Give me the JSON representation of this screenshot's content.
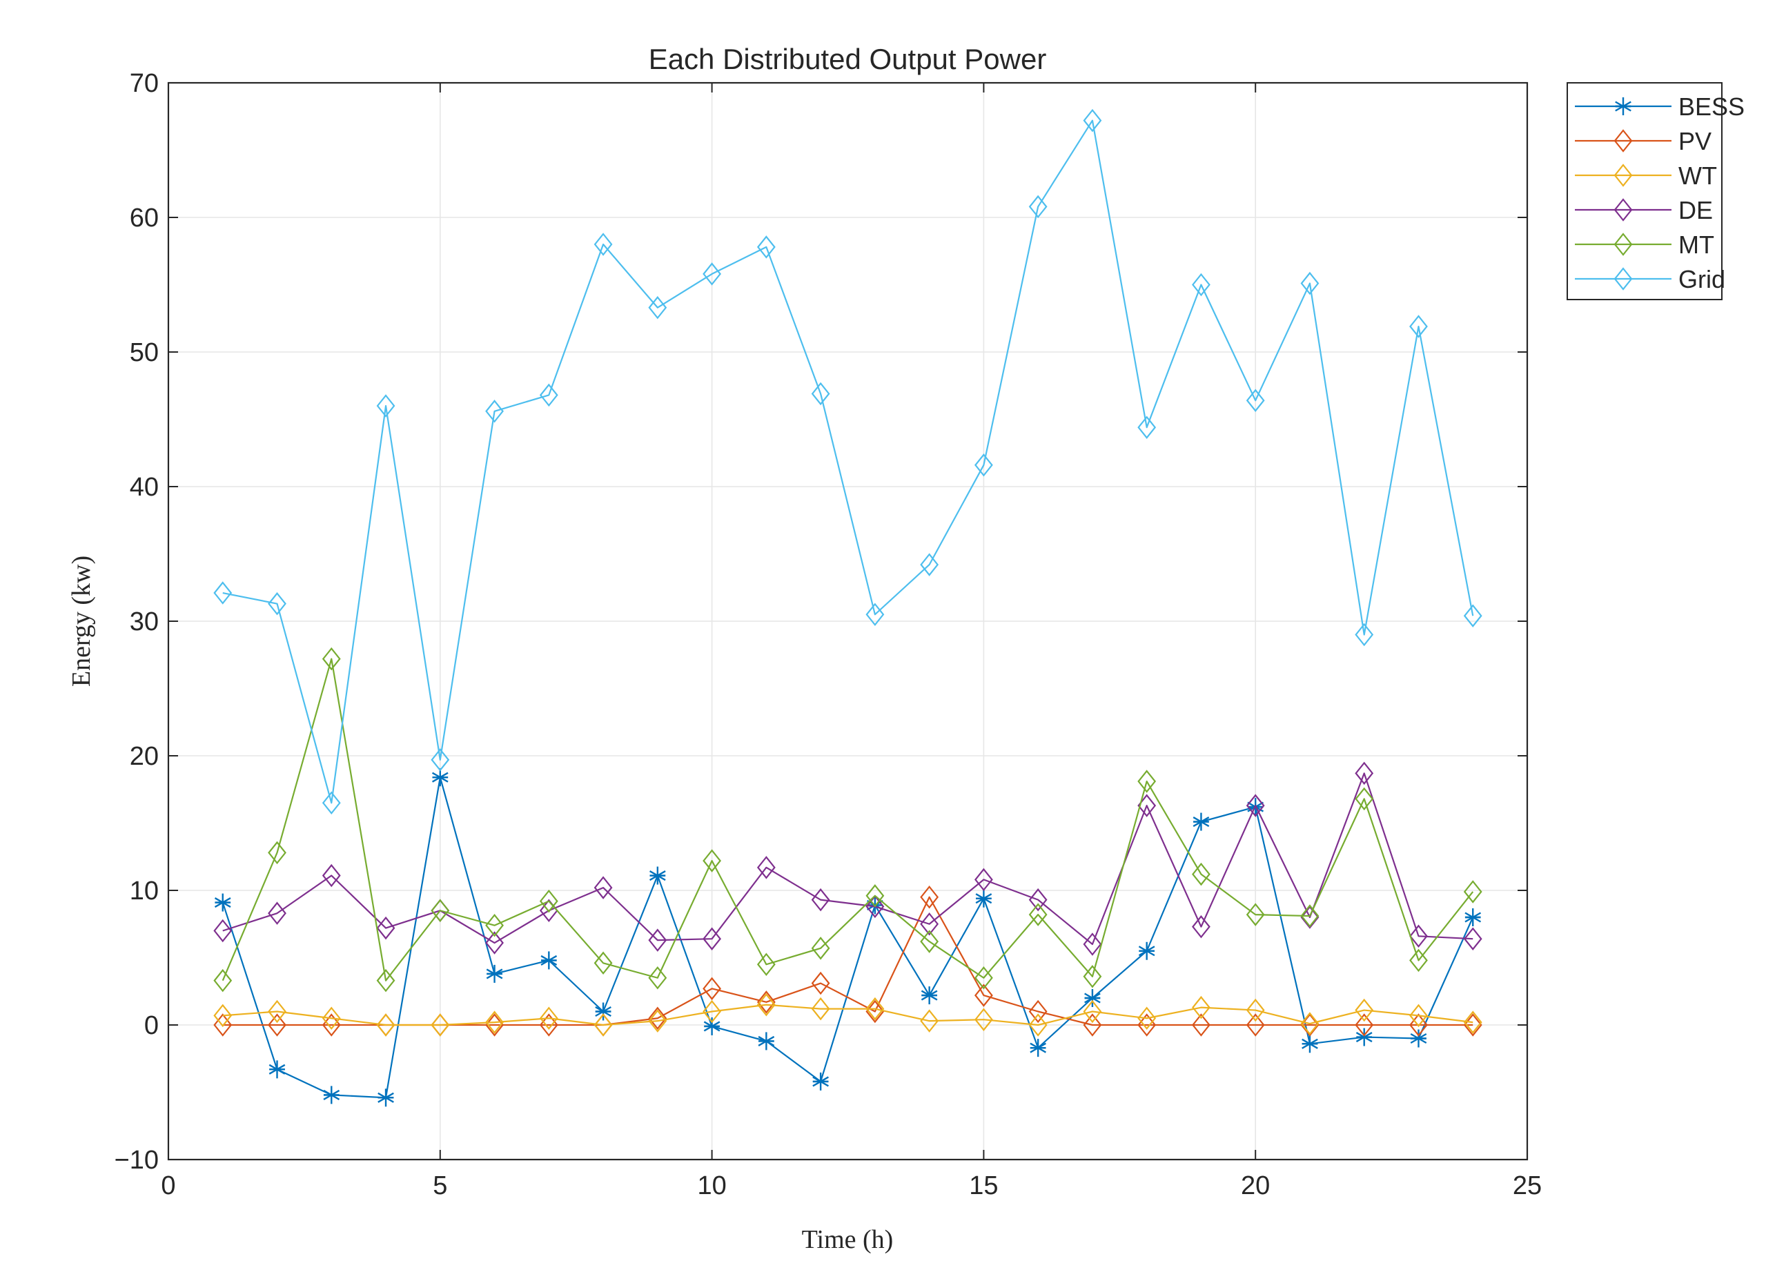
{
  "chart_data": {
    "type": "line",
    "title": "Each Distributed Output Power",
    "xlabel": "Time (h)",
    "ylabel": "Energy (kw)",
    "xlim": [
      0,
      25
    ],
    "ylim": [
      -10,
      70
    ],
    "xticks": [
      0,
      5,
      10,
      15,
      20,
      25
    ],
    "yticks": [
      -10,
      0,
      10,
      20,
      30,
      40,
      50,
      60,
      70
    ],
    "xtick_labels": [
      "0",
      "5",
      "10",
      "15",
      "20",
      "25"
    ],
    "ytick_labels": [
      "−10",
      "0",
      "10",
      "20",
      "30",
      "40",
      "50",
      "60",
      "70"
    ],
    "grid": true,
    "legend_position": "outside top-right",
    "x": [
      1,
      2,
      3,
      4,
      5,
      6,
      7,
      8,
      9,
      10,
      11,
      12,
      13,
      14,
      15,
      16,
      17,
      18,
      19,
      20,
      21,
      22,
      23,
      24
    ],
    "series": [
      {
        "name": "BESS",
        "color": "#0072BD",
        "marker": "asterisk",
        "values": [
          9.1,
          -3.3,
          -5.2,
          -5.4,
          18.4,
          3.8,
          4.8,
          1.0,
          11.1,
          -0.1,
          -1.2,
          -4.2,
          8.9,
          2.2,
          9.4,
          -1.7,
          2.0,
          5.5,
          15.1,
          16.2,
          -1.4,
          -0.9,
          -1.0,
          8.0
        ]
      },
      {
        "name": "PV",
        "color": "#D95319",
        "marker": "diamond",
        "values": [
          0,
          0,
          0,
          0,
          0,
          0,
          0,
          0,
          0.5,
          2.7,
          1.7,
          3.1,
          1.0,
          9.5,
          2.2,
          1.0,
          0,
          0,
          0,
          0,
          0,
          0,
          0,
          0
        ]
      },
      {
        "name": "WT",
        "color": "#EDB120",
        "marker": "diamond",
        "values": [
          0.7,
          1.0,
          0.5,
          0.0,
          0.0,
          0.2,
          0.5,
          0.0,
          0.3,
          1.0,
          1.5,
          1.2,
          1.2,
          0.3,
          0.4,
          0.0,
          1.0,
          0.5,
          1.3,
          1.1,
          0.1,
          1.1,
          0.7,
          0.2
        ]
      },
      {
        "name": "DE",
        "color": "#7E2F8E",
        "marker": "diamond",
        "values": [
          7.0,
          8.3,
          11.1,
          7.2,
          8.5,
          6.1,
          8.5,
          10.2,
          6.3,
          6.4,
          11.7,
          9.3,
          8.8,
          7.5,
          10.8,
          9.3,
          6.0,
          16.3,
          7.3,
          16.3,
          8.0,
          18.7,
          6.6,
          6.4
        ]
      },
      {
        "name": "MT",
        "color": "#77AC30",
        "marker": "diamond",
        "values": [
          3.3,
          12.8,
          27.2,
          3.3,
          8.5,
          7.4,
          9.2,
          4.6,
          3.5,
          12.2,
          4.5,
          5.7,
          9.6,
          6.2,
          3.5,
          8.2,
          3.6,
          18.1,
          11.2,
          8.2,
          8.1,
          16.8,
          4.8,
          9.9
        ]
      },
      {
        "name": "Grid",
        "color": "#4DBEEE",
        "marker": "diamond",
        "values": [
          32.1,
          31.3,
          16.5,
          46.0,
          19.7,
          45.6,
          46.8,
          58.0,
          53.3,
          55.8,
          57.8,
          46.9,
          30.5,
          34.2,
          41.6,
          60.8,
          67.2,
          44.4,
          55.0,
          46.4,
          55.1,
          29.0,
          51.9,
          30.4
        ]
      }
    ]
  }
}
